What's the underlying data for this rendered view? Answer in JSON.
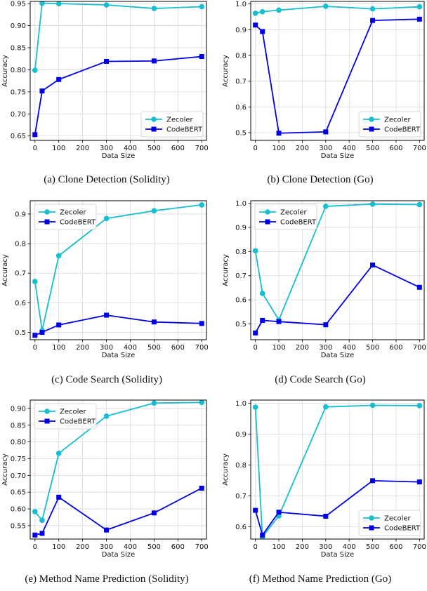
{
  "colors": {
    "zecoler": "#17becf",
    "codebert": "#0000e6"
  },
  "chart_data": [
    {
      "type": "line",
      "caption": "(a)  Clone Detection (Solidity)",
      "xlabel": "Data Size",
      "ylabel": "Accuracy",
      "xlim": [
        -20,
        720
      ],
      "ylim": [
        0.64,
        0.955
      ],
      "xticks": [
        0,
        100,
        200,
        300,
        400,
        500,
        600,
        700
      ],
      "xtick_labels": [
        "0",
        "100",
        "200",
        "300",
        "400",
        "500",
        "600",
        "700"
      ],
      "yticks": [
        0.65,
        0.7,
        0.75,
        0.8,
        0.85,
        0.9,
        0.95
      ],
      "ytick_labels": [
        "0.65",
        "0.70",
        "0.75",
        "0.80",
        "0.85",
        "0.90",
        "0.95"
      ],
      "legend_position": "lower-right",
      "x": [
        0,
        30,
        100,
        300,
        500,
        700
      ],
      "series": [
        {
          "name": "Zecoler",
          "marker": "circle",
          "values": [
            0.799,
            0.951,
            0.95,
            0.947,
            0.939,
            0.943
          ]
        },
        {
          "name": "CodeBERT",
          "marker": "square",
          "values": [
            0.653,
            0.752,
            0.778,
            0.819,
            0.82,
            0.83
          ]
        }
      ]
    },
    {
      "type": "line",
      "caption": "(b)  Clone Detection (Go)",
      "xlabel": "Data Size",
      "ylabel": "Accuracy",
      "xlim": [
        -20,
        720
      ],
      "ylim": [
        0.47,
        1.01
      ],
      "xticks": [
        0,
        100,
        200,
        300,
        400,
        500,
        600,
        700
      ],
      "xtick_labels": [
        "0",
        "100",
        "200",
        "300",
        "400",
        "500",
        "600",
        "700"
      ],
      "yticks": [
        0.5,
        0.6,
        0.7,
        0.8,
        0.9,
        1.0
      ],
      "ytick_labels": [
        "0.5",
        "0.6",
        "0.7",
        "0.8",
        "0.9",
        "1.0"
      ],
      "legend_position": "lower-right",
      "x": [
        0,
        30,
        100,
        300,
        500,
        700
      ],
      "series": [
        {
          "name": "Zecoler",
          "marker": "circle",
          "values": [
            0.964,
            0.97,
            0.976,
            0.991,
            0.981,
            0.989
          ]
        },
        {
          "name": "CodeBERT",
          "marker": "square",
          "values": [
            0.918,
            0.893,
            0.498,
            0.503,
            0.936,
            0.941
          ]
        }
      ]
    },
    {
      "type": "line",
      "caption": "(c)  Code Search (Solidity)",
      "xlabel": "Data Size",
      "ylabel": "Accuracy",
      "xlim": [
        -20,
        720
      ],
      "ylim": [
        0.475,
        0.945
      ],
      "xticks": [
        0,
        100,
        200,
        300,
        400,
        500,
        600,
        700
      ],
      "xtick_labels": [
        "0",
        "100",
        "200",
        "300",
        "400",
        "500",
        "600",
        "700"
      ],
      "yticks": [
        0.5,
        0.6,
        0.7,
        0.8,
        0.9
      ],
      "ytick_labels": [
        "0.5",
        "0.6",
        "0.7",
        "0.8",
        "0.9"
      ],
      "legend_position": "top-left",
      "x": [
        0,
        30,
        100,
        300,
        500,
        700
      ],
      "series": [
        {
          "name": "Zecoler",
          "marker": "circle",
          "values": [
            0.672,
            0.506,
            0.759,
            0.885,
            0.911,
            0.931
          ]
        },
        {
          "name": "CodeBERT",
          "marker": "square",
          "values": [
            0.49,
            0.5,
            0.525,
            0.558,
            0.535,
            0.53
          ]
        }
      ]
    },
    {
      "type": "line",
      "caption": "(d)  Code Search (Go)",
      "xlabel": "Data Size",
      "ylabel": "Accuracy",
      "xlim": [
        -20,
        720
      ],
      "ylim": [
        0.435,
        1.01
      ],
      "xticks": [
        0,
        100,
        200,
        300,
        400,
        500,
        600,
        700
      ],
      "xtick_labels": [
        "0",
        "100",
        "200",
        "300",
        "400",
        "500",
        "600",
        "700"
      ],
      "yticks": [
        0.5,
        0.6,
        0.7,
        0.8,
        0.9,
        1.0
      ],
      "ytick_labels": [
        "0.5",
        "0.6",
        "0.7",
        "0.8",
        "0.9",
        "1.0"
      ],
      "legend_position": "top-left",
      "x": [
        0,
        30,
        100,
        300,
        500,
        700
      ],
      "series": [
        {
          "name": "Zecoler",
          "marker": "circle",
          "values": [
            0.803,
            0.627,
            0.517,
            0.987,
            0.996,
            0.994
          ]
        },
        {
          "name": "CodeBERT",
          "marker": "square",
          "values": [
            0.463,
            0.515,
            0.51,
            0.497,
            0.744,
            0.652
          ]
        }
      ]
    },
    {
      "type": "line",
      "caption": "(e)  Method Name Prediction (Solidity)",
      "xlabel": "Data Size",
      "ylabel": "Accuracy",
      "xlim": [
        -20,
        720
      ],
      "ylim": [
        0.51,
        0.925
      ],
      "xticks": [
        0,
        100,
        200,
        300,
        400,
        500,
        600,
        700
      ],
      "xtick_labels": [
        "0",
        "100",
        "200",
        "300",
        "400",
        "500",
        "600",
        "700"
      ],
      "yticks": [
        0.55,
        0.6,
        0.65,
        0.7,
        0.75,
        0.8,
        0.85,
        0.9
      ],
      "ytick_labels": [
        "0.55",
        "0.60",
        "0.65",
        "0.70",
        "0.75",
        "0.80",
        "0.85",
        "0.90"
      ],
      "legend_position": "top-left",
      "x": [
        0,
        30,
        100,
        300,
        500,
        700
      ],
      "series": [
        {
          "name": "Zecoler",
          "marker": "circle",
          "values": [
            0.592,
            0.566,
            0.766,
            0.877,
            0.916,
            0.918
          ]
        },
        {
          "name": "CodeBERT",
          "marker": "square",
          "values": [
            0.522,
            0.527,
            0.635,
            0.537,
            0.588,
            0.662
          ]
        }
      ]
    },
    {
      "type": "line",
      "caption": "(f)  Method Name Prediction (Go)",
      "xlabel": "Data Size",
      "ylabel": "Accuracy",
      "xlim": [
        -20,
        720
      ],
      "ylim": [
        0.56,
        1.01
      ],
      "xticks": [
        0,
        100,
        200,
        300,
        400,
        500,
        600,
        700
      ],
      "xtick_labels": [
        "0",
        "100",
        "200",
        "300",
        "400",
        "500",
        "600",
        "700"
      ],
      "yticks": [
        0.6,
        0.7,
        0.8,
        0.9,
        1.0
      ],
      "ytick_labels": [
        "0.6",
        "0.7",
        "0.8",
        "0.9",
        "1.0"
      ],
      "legend_position": "lower-right",
      "x": [
        0,
        30,
        100,
        300,
        500,
        700
      ],
      "series": [
        {
          "name": "Zecoler",
          "marker": "circle",
          "values": [
            0.987,
            0.567,
            0.635,
            0.988,
            0.993,
            0.992
          ]
        },
        {
          "name": "CodeBERT",
          "marker": "square",
          "values": [
            0.653,
            0.573,
            0.647,
            0.634,
            0.749,
            0.745
          ]
        }
      ]
    }
  ]
}
